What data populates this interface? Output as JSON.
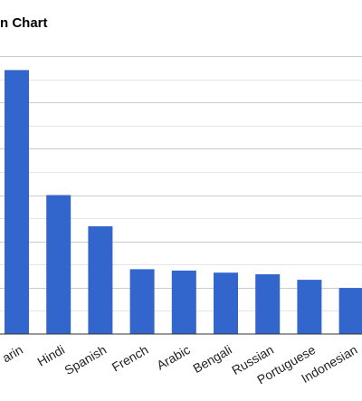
{
  "chart_data": {
    "type": "bar",
    "title": "n Chart",
    "xlabel": "",
    "ylabel": "",
    "categories": [
      "arin",
      "Hindi",
      "Spanish",
      "French",
      "Arabic",
      "Bengali",
      "Russian",
      "Portuguese",
      "Indonesian"
    ],
    "values": [
      1140,
      600,
      465,
      280,
      274,
      265,
      258,
      234,
      199
    ],
    "ylim": [
      0,
      1200
    ],
    "grid": true,
    "legend": "none",
    "colors": {
      "bar": "#3366cc",
      "grid": "#cccccc",
      "axis": "#333333",
      "label": "#222222"
    }
  }
}
